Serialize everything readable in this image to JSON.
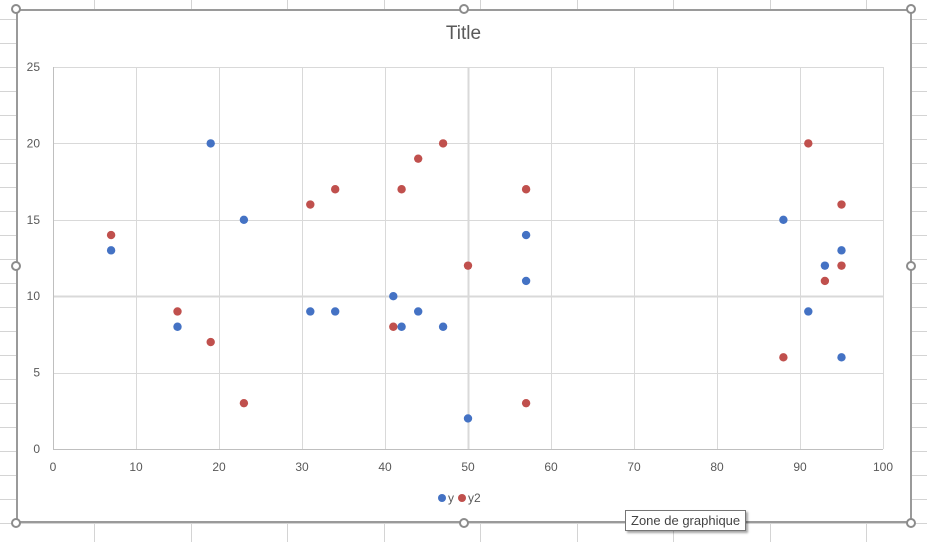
{
  "chart": {
    "title": "Title",
    "tooltip": "Zone de graphique",
    "legend": [
      {
        "label": "y",
        "color": "#4472C4"
      },
      {
        "label": "y2",
        "color": "#C0504D"
      }
    ]
  },
  "chart_data": {
    "type": "scatter",
    "title": "Title",
    "xlabel": "",
    "ylabel": "",
    "xlim": [
      0,
      100
    ],
    "ylim": [
      0,
      25
    ],
    "x_ticks": [
      0,
      10,
      20,
      30,
      40,
      50,
      60,
      70,
      80,
      90,
      100
    ],
    "y_ticks": [
      0,
      5,
      10,
      15,
      20,
      25
    ],
    "grid": true,
    "legend_position": "bottom",
    "series": [
      {
        "name": "y",
        "color": "#4472C4",
        "x": [
          7,
          15,
          19,
          23,
          31,
          34,
          41,
          42,
          44,
          47,
          50,
          57,
          57,
          88,
          91,
          93,
          95,
          95
        ],
        "y": [
          13,
          8,
          20,
          15,
          9,
          9,
          10,
          8,
          9,
          8,
          2,
          14,
          11,
          15,
          9,
          12,
          13,
          6
        ]
      },
      {
        "name": "y2",
        "color": "#C0504D",
        "x": [
          7,
          15,
          19,
          23,
          31,
          34,
          41,
          42,
          44,
          47,
          50,
          57,
          57,
          88,
          91,
          93,
          95,
          95
        ],
        "y": [
          14,
          9,
          7,
          3,
          16,
          17,
          8,
          17,
          19,
          20,
          12,
          17,
          3,
          6,
          20,
          11,
          16,
          12
        ]
      }
    ]
  }
}
